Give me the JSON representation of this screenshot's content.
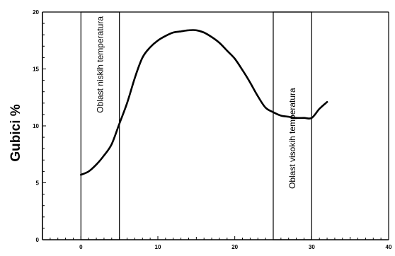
{
  "chart_data": {
    "type": "line",
    "title": "",
    "xlabel": "",
    "ylabel": "Gubici %",
    "xlim": [
      -5,
      40
    ],
    "ylim": [
      0,
      20
    ],
    "x_ticks": [
      "0",
      "10",
      "20",
      "30",
      "40"
    ],
    "y_ticks": [
      "0",
      "5",
      "10",
      "15",
      "20"
    ],
    "grid": false,
    "legend": "none",
    "regions": [
      {
        "x_start": 0,
        "x_end": 5,
        "label": "Oblast niskih temperatura"
      },
      {
        "x_start": 25,
        "x_end": 30,
        "label": "Oblast visokih temperatura"
      }
    ],
    "series": [
      {
        "x": [
          0,
          1,
          2,
          3,
          4,
          5,
          6,
          7,
          8,
          9,
          10,
          11,
          12,
          13,
          14,
          15,
          16,
          17,
          18,
          19,
          20,
          21,
          22,
          23,
          24,
          25,
          26,
          27,
          28,
          29,
          30,
          31,
          32
        ],
        "values": [
          5.7,
          6.0,
          6.6,
          7.4,
          8.4,
          10.2,
          12.0,
          14.2,
          16.0,
          16.9,
          17.5,
          17.9,
          18.2,
          18.3,
          18.4,
          18.4,
          18.2,
          17.8,
          17.3,
          16.6,
          15.9,
          14.9,
          13.8,
          12.6,
          11.6,
          11.2,
          10.9,
          10.8,
          10.7,
          10.7,
          10.7,
          11.5,
          12.1
        ],
        "color": "#000000"
      }
    ]
  }
}
